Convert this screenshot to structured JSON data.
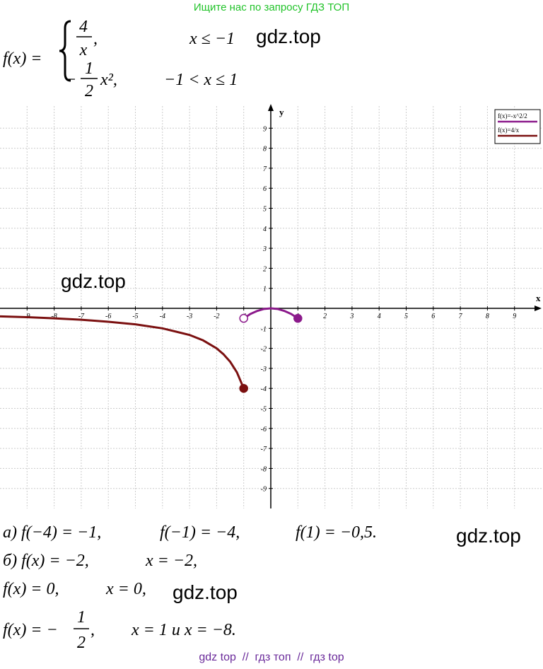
{
  "header": "Ищите нас по запросу ГДЗ ТОП",
  "formula": {
    "lhs": "f(x) =",
    "cases": [
      {
        "sign": "",
        "num": "4",
        "den": "x",
        "tail": ",",
        "condition": "x ≤ −1"
      },
      {
        "sign": "−",
        "num": "1",
        "den": "2",
        "tail": "x²,",
        "condition": "−1 < x ≤ 1"
      }
    ]
  },
  "watermarks": [
    "gdz.top",
    "gdz.top",
    "gdz.top",
    "gdz.top"
  ],
  "graph": {
    "x_label": "x",
    "y_label": "y",
    "xlim": [
      -10,
      10
    ],
    "ylim": [
      -10,
      10
    ],
    "xticks": [
      -9,
      -8,
      -7,
      -6,
      -5,
      -4,
      -3,
      -2,
      -1,
      1,
      2,
      3,
      4,
      5,
      6,
      7,
      8,
      9
    ],
    "yticks": [
      -9,
      -8,
      -7,
      -6,
      -5,
      -4,
      -3,
      -2,
      -1,
      1,
      2,
      3,
      4,
      5,
      6,
      7,
      8,
      9
    ],
    "grid": true,
    "series": [
      {
        "name": "f(x)=-x^2/2",
        "color": "#8b1a8b",
        "x": [
          -1,
          -0.75,
          -0.5,
          -0.25,
          0,
          0.25,
          0.5,
          0.75,
          1
        ],
        "values": [
          -0.5,
          -0.28,
          -0.13,
          -0.03,
          0,
          -0.03,
          -0.13,
          -0.28,
          -0.5
        ]
      },
      {
        "name": "f(x)=4/x",
        "color": "#7b1010",
        "x": [
          -10,
          -9,
          -8,
          -7,
          -6,
          -5,
          -4,
          -3,
          -2.5,
          -2,
          -1.75,
          -1.5,
          -1.25,
          -1
        ],
        "values": [
          -0.4,
          -0.44,
          -0.5,
          -0.57,
          -0.67,
          -0.8,
          -1,
          -1.33,
          -1.6,
          -2,
          -2.29,
          -2.67,
          -3.2,
          -4
        ]
      }
    ],
    "points": [
      {
        "x": -1,
        "y": -0.5,
        "filled": false,
        "color": "#8b1a8b"
      },
      {
        "x": 1,
        "y": -0.5,
        "filled": true,
        "color": "#8b1a8b"
      },
      {
        "x": -1,
        "y": -4,
        "filled": true,
        "color": "#7b1010"
      }
    ]
  },
  "answers": {
    "a": [
      "а) f(−4) = −1,",
      "f(−1) = −4,",
      "f(1) = −0,5."
    ],
    "b": [
      "б) f(x) = −2,",
      "x = −2,"
    ],
    "c": [
      "f(x) = 0,",
      "x = 0,"
    ],
    "d": {
      "lhs": "f(x) = −",
      "num": "1",
      "den": "2",
      "tail": ",",
      "rhs": "x = 1 и x = −8."
    }
  },
  "footer": "gdz top  //  гдз топ  //  гдз top"
}
